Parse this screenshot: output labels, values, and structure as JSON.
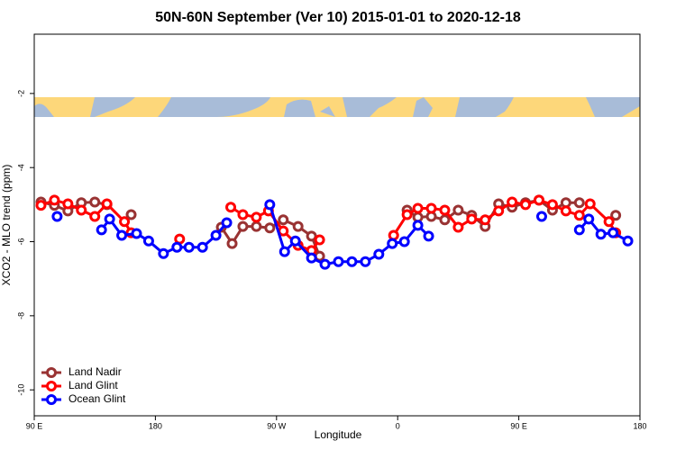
{
  "chart_data": {
    "type": "line",
    "title": "50N-60N September (Ver 10)   2015-01-01 to 2020-12-18",
    "x_label": "Longitude",
    "y_label": "XCO2 - MLO trend (ppm)",
    "xlim": [
      90,
      540
    ],
    "ylim": [
      -10.7,
      -0.4
    ],
    "xticks": [
      {
        "value": 90,
        "label": "90 E"
      },
      {
        "value": 180,
        "label": "180"
      },
      {
        "value": 270,
        "label": "90 W"
      },
      {
        "value": 360,
        "label": "0"
      },
      {
        "value": 450,
        "label": "90 E"
      },
      {
        "value": 540,
        "label": "180"
      }
    ],
    "yticks": [
      -2,
      -4,
      -6,
      -8,
      -10
    ],
    "legend": "bottom-left",
    "series": [
      {
        "name": "Land Nadir",
        "color": "#993333",
        "x": [
          95,
          105,
          115,
          125,
          135,
          144,
          null,
          162,
          null,
          229,
          237,
          245,
          255,
          265,
          275,
          286,
          296,
          302,
          null,
          367,
          375,
          385,
          395,
          405,
          415,
          425,
          435,
          445,
          455,
          465,
          475,
          485,
          495,
          null,
          522
        ],
        "values": [
          -4.93,
          -5.02,
          -5.17,
          -4.95,
          -4.93,
          -5.0,
          null,
          -5.27,
          null,
          -5.61,
          -6.05,
          -5.59,
          -5.59,
          -5.63,
          -5.41,
          -5.59,
          -5.85,
          -6.39,
          null,
          -5.15,
          -5.34,
          -5.32,
          -5.41,
          -5.15,
          -5.29,
          -5.59,
          -4.98,
          -5.07,
          -4.95,
          -4.88,
          -5.15,
          -4.95,
          -4.95,
          null,
          -5.29
        ]
      },
      {
        "name": "Land Glint",
        "color": "#ff0000",
        "x": [
          95,
          105,
          115,
          125,
          135,
          144,
          157,
          162,
          null,
          198,
          null,
          236,
          245,
          255,
          264,
          275,
          286,
          296,
          302,
          null,
          357,
          367,
          375,
          385,
          395,
          405,
          415,
          425,
          435,
          445,
          455,
          465,
          475,
          485,
          495,
          503,
          517,
          522
        ],
        "values": [
          -5.02,
          -4.88,
          -4.98,
          -5.15,
          -5.32,
          -4.98,
          -5.46,
          -5.76,
          null,
          -5.93,
          null,
          -5.07,
          -5.27,
          -5.34,
          -5.17,
          -5.71,
          -6.1,
          -6.24,
          -5.95,
          null,
          -5.83,
          -5.27,
          -5.1,
          -5.1,
          -5.15,
          -5.61,
          -5.39,
          -5.41,
          -5.17,
          -4.93,
          -5.0,
          -4.88,
          -5.0,
          -5.17,
          -5.29,
          -4.98,
          -5.46,
          -5.76
        ]
      },
      {
        "name": "Ocean Glint",
        "color": "#0000ff",
        "x": [
          107,
          null,
          140,
          146,
          155,
          166,
          175,
          186,
          196,
          205,
          215,
          225,
          233,
          null,
          265,
          276,
          284,
          296,
          306,
          316,
          326,
          336,
          346,
          356,
          365,
          375,
          383,
          null,
          467,
          null,
          495,
          502,
          511,
          520,
          531
        ],
        "values": [
          -5.32,
          null,
          -5.68,
          -5.39,
          -5.83,
          -5.78,
          -5.98,
          -6.32,
          -6.15,
          -6.15,
          -6.15,
          -5.83,
          -5.49,
          null,
          -5.0,
          -6.27,
          -5.98,
          -6.44,
          -6.61,
          -6.54,
          -6.54,
          -6.54,
          -6.34,
          -6.05,
          -6.0,
          -5.56,
          -5.85,
          null,
          -5.32,
          null,
          -5.68,
          -5.39,
          -5.8,
          -5.76,
          -5.98
        ]
      }
    ]
  }
}
